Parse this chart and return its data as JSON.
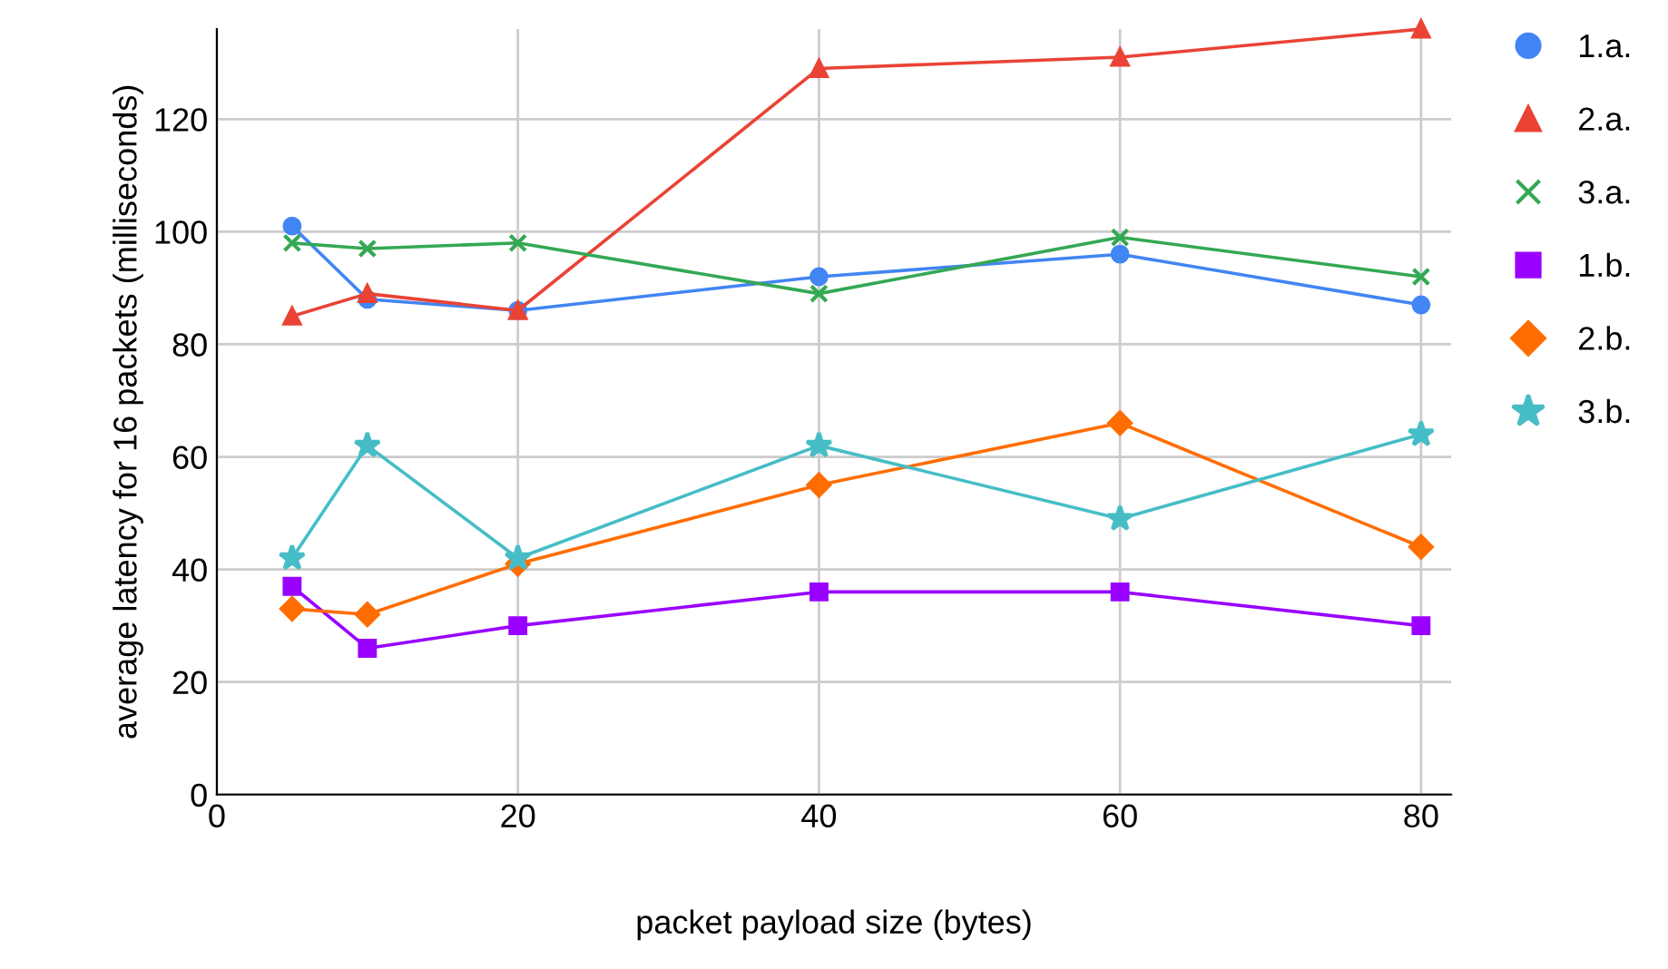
{
  "chart_data": {
    "type": "line",
    "xlabel": "packet payload size (bytes)",
    "ylabel": "average latency for 16 packets (milliseconds)",
    "x": [
      5,
      10,
      20,
      40,
      60,
      80
    ],
    "series": [
      {
        "name": "1.a.",
        "color": "#4285f4",
        "marker": "circle",
        "values": [
          101,
          88,
          86,
          92,
          96,
          87
        ]
      },
      {
        "name": "2.a.",
        "color": "#ea4335",
        "marker": "triangle",
        "values": [
          85,
          89,
          86,
          129,
          131,
          136
        ]
      },
      {
        "name": "3.a.",
        "color": "#34a853",
        "marker": "cross",
        "values": [
          98,
          97,
          98,
          89,
          99,
          92
        ]
      },
      {
        "name": "1.b.",
        "color": "#9900ff",
        "marker": "square",
        "values": [
          37,
          26,
          30,
          36,
          36,
          30
        ]
      },
      {
        "name": "2.b.",
        "color": "#ff6d01",
        "marker": "diamond",
        "values": [
          33,
          32,
          41,
          55,
          66,
          44
        ]
      },
      {
        "name": "3.b.",
        "color": "#46bdc6",
        "marker": "star",
        "values": [
          42,
          62,
          42,
          62,
          49,
          64
        ]
      }
    ],
    "xlim": [
      0,
      82
    ],
    "xticks": [
      0,
      20,
      40,
      60,
      80
    ],
    "ylim": [
      0,
      136
    ],
    "yticks": [
      0,
      20,
      40,
      60,
      80,
      100,
      120
    ],
    "grid": true,
    "legend": "right",
    "line_style": "solid"
  }
}
